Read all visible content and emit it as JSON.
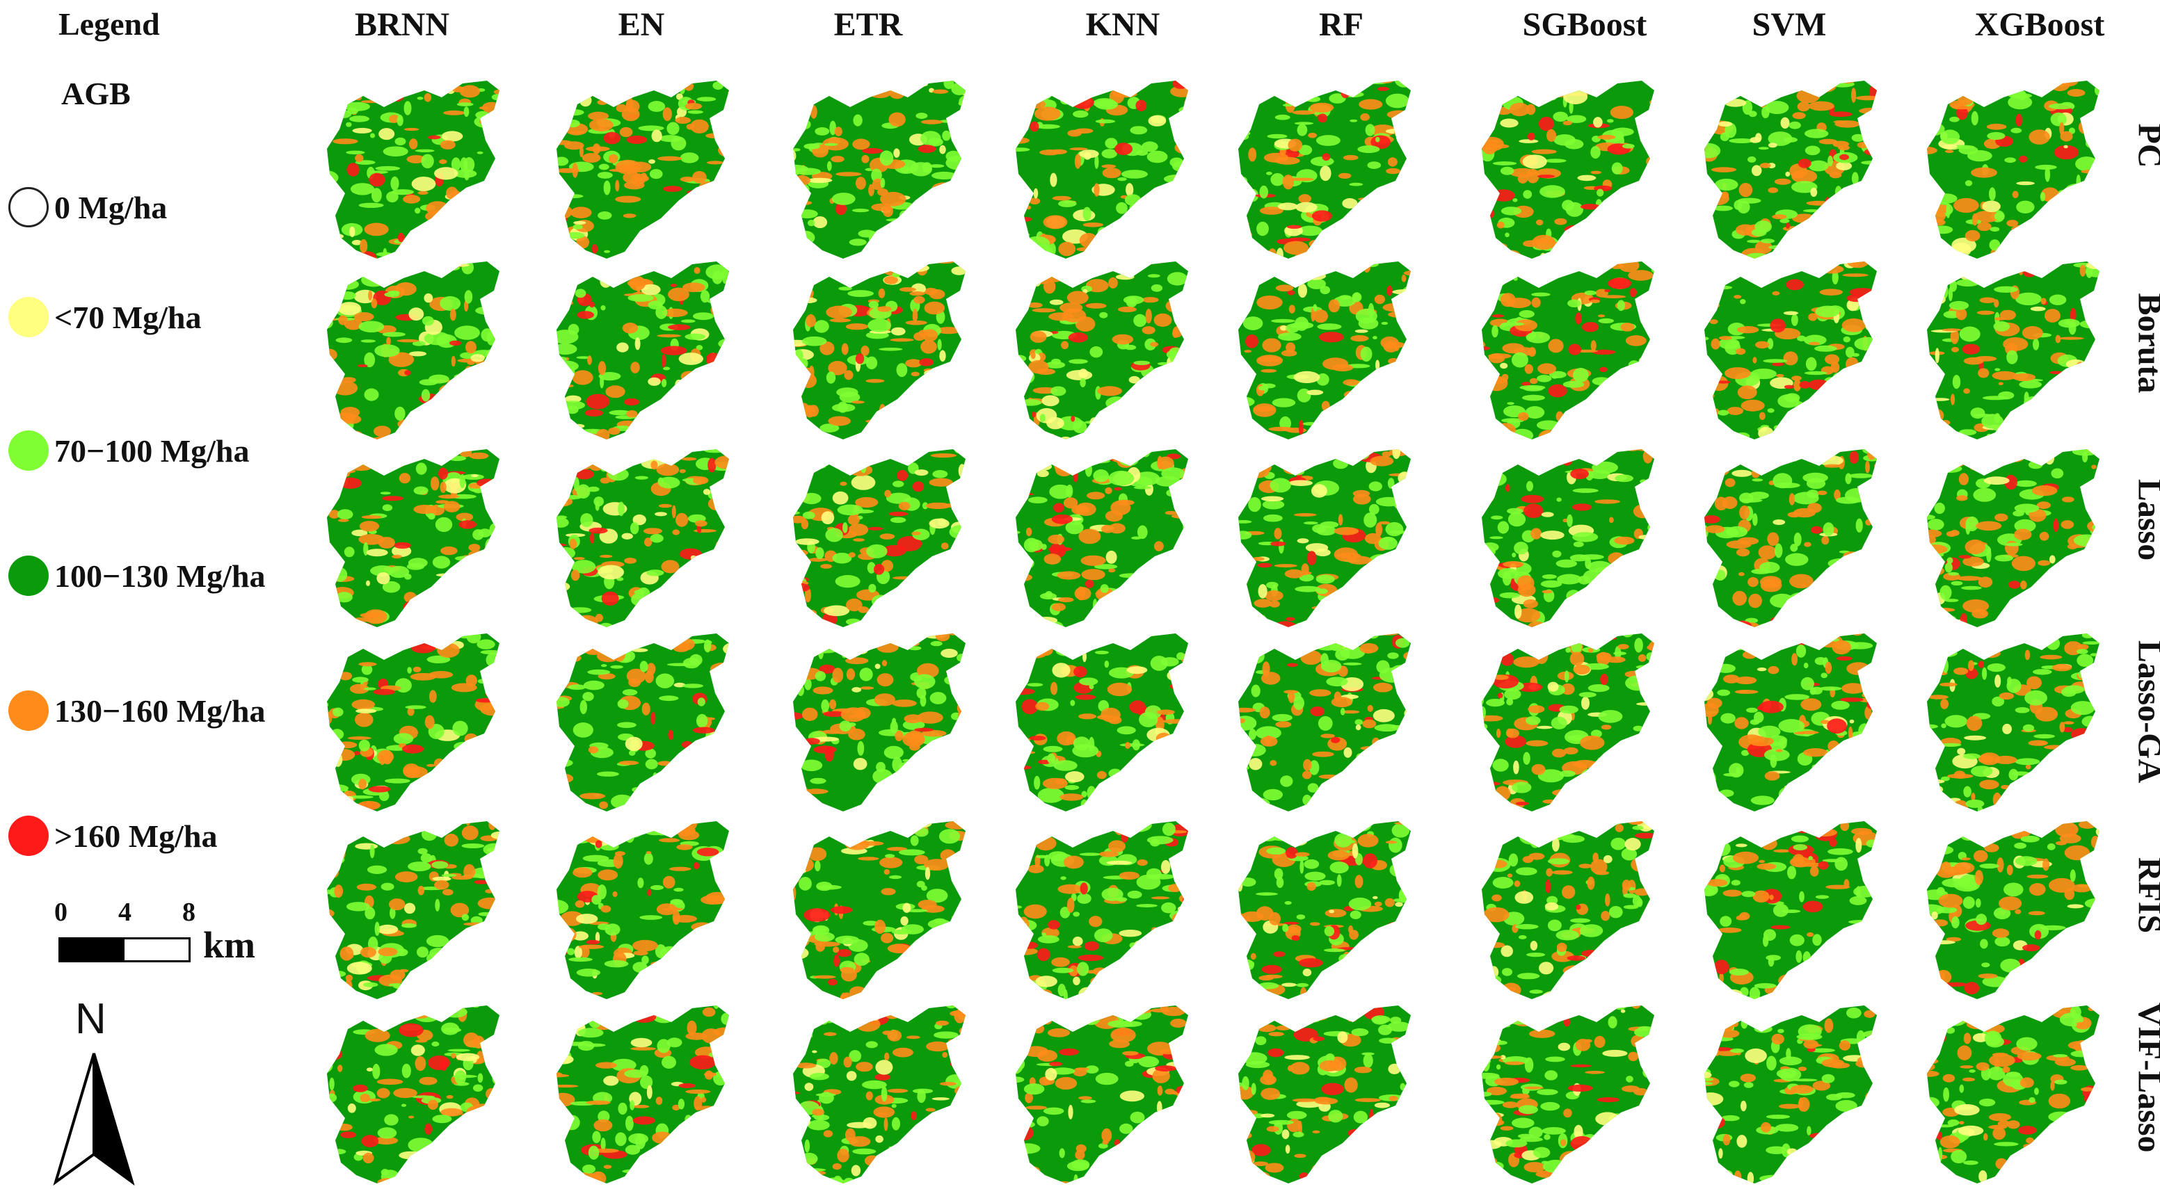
{
  "legend": {
    "title": "Legend",
    "subtitle": "AGB",
    "items": [
      {
        "label": "0 Mg/ha",
        "color": "#ffffff"
      },
      {
        "label": "<70 Mg/ha",
        "color": "#ffff7f"
      },
      {
        "label": "70−100 Mg/ha",
        "color": "#7fff33"
      },
      {
        "label": "100−130 Mg/ha",
        "color": "#0a9a0a"
      },
      {
        "label": "130−160 Mg/ha",
        "color": "#ff8c1a"
      },
      {
        "label": ">160 Mg/ha",
        "color": "#ff1a1a"
      }
    ]
  },
  "scale": {
    "ticks": [
      "0",
      "4",
      "8"
    ],
    "unit": "km"
  },
  "north_arrow": {
    "label": "N",
    "icon": "north-arrow-icon"
  },
  "models": [
    "BRNN",
    "EN",
    "ETR",
    "KNN",
    "RF",
    "SGBoost",
    "SVM",
    "XGBoost"
  ],
  "feature_selection": [
    "PC",
    "Boruta",
    "Lasso",
    "Lasso-GA",
    "RFIS",
    "VIF-Lasso"
  ]
}
